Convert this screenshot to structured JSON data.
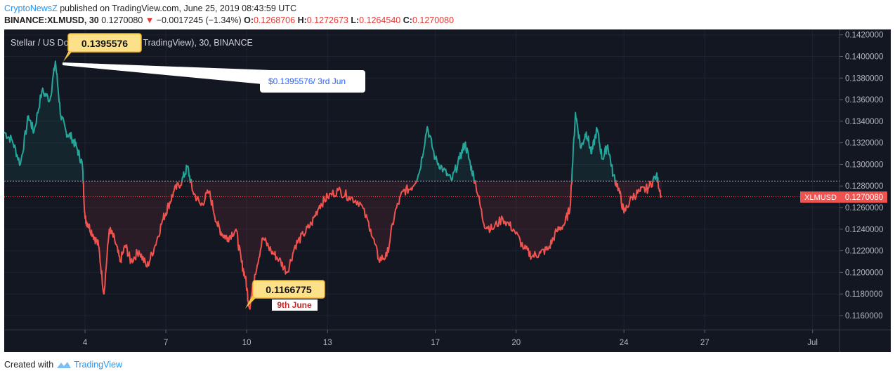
{
  "header": {
    "brand": "CryptoNewsZ",
    "published_text": " published on TradingView.com, June 25, 2019 08:43:59 UTC",
    "symbol": "BINANCE:XLMUSD, 30",
    "last": "0.1270080",
    "change_arrow": "▼",
    "change": "−0.0017245 (−1.34%)",
    "o_key": "O:",
    "o_val": "0.1268706",
    "h_key": "H:",
    "h_val": "0.1272673",
    "l_key": "L:",
    "l_val": "0.1264540",
    "c_key": "C:",
    "c_val": "0.1270080"
  },
  "chart_data": {
    "type": "line",
    "title": "Stellar / US Do",
    "title_suffix": "y TradingView), 30, BINANCE",
    "ylim": [
      0.1147,
      0.1425
    ],
    "y_ticks": [
      "0.1160000",
      "0.1180000",
      "0.1200000",
      "0.1220000",
      "0.1240000",
      "0.1260000",
      "0.1280000",
      "0.1300000",
      "0.1320000",
      "0.1340000",
      "0.1360000",
      "0.1380000",
      "0.1400000",
      "0.1420000"
    ],
    "x_ticks": [
      "4",
      "7",
      "10",
      "13",
      "17",
      "20",
      "24",
      "27",
      "Jul"
    ],
    "x_tick_days": [
      4,
      7,
      10,
      13,
      17,
      20,
      24,
      27,
      31
    ],
    "xlim": [
      1,
      32
    ],
    "baseline": 0.12845,
    "last_value": 0.127008,
    "last_value_label": "0.1270080",
    "last_value_tag": "XLMUSD",
    "up_color": "#26a69a",
    "down_color": "#ef5350",
    "x": [
      1.0,
      1.3,
      1.6,
      1.9,
      2.1,
      2.4,
      2.7,
      2.9,
      3.1,
      3.3,
      3.5,
      3.7,
      3.9,
      4.0,
      4.1,
      4.3,
      4.5,
      4.7,
      4.9,
      5.1,
      5.3,
      5.5,
      5.7,
      6.0,
      6.3,
      6.6,
      6.9,
      7.1,
      7.3,
      7.6,
      7.8,
      8.0,
      8.3,
      8.6,
      8.9,
      9.1,
      9.3,
      9.6,
      9.8,
      9.95,
      10.1,
      10.3,
      10.6,
      10.9,
      11.2,
      11.5,
      11.8,
      12.1,
      12.4,
      12.7,
      13.0,
      13.4,
      13.8,
      14.2,
      14.6,
      14.9,
      15.2,
      15.5,
      15.8,
      16.1,
      16.4,
      16.7,
      17.0,
      17.3,
      17.6,
      17.9,
      18.1,
      18.3,
      18.5,
      18.8,
      19.1,
      19.5,
      19.9,
      20.3,
      20.6,
      20.9,
      21.2,
      21.5,
      21.8,
      22.0,
      22.2,
      22.4,
      22.6,
      22.8,
      23.0,
      23.2,
      23.4,
      23.6,
      23.8,
      24.0,
      24.3,
      24.6,
      24.9,
      25.2,
      25.4
    ],
    "values": [
      0.133,
      0.1322,
      0.13,
      0.1345,
      0.133,
      0.1368,
      0.136,
      0.1395576,
      0.1345,
      0.133,
      0.1325,
      0.1315,
      0.13,
      0.125,
      0.1245,
      0.1235,
      0.1225,
      0.118,
      0.124,
      0.123,
      0.121,
      0.1225,
      0.121,
      0.122,
      0.1205,
      0.1225,
      0.125,
      0.1262,
      0.1275,
      0.1285,
      0.1298,
      0.1275,
      0.1262,
      0.1275,
      0.1245,
      0.1235,
      0.1232,
      0.124,
      0.121,
      0.1195,
      0.1166775,
      0.1198,
      0.1232,
      0.122,
      0.1212,
      0.12,
      0.1225,
      0.1235,
      0.1245,
      0.1262,
      0.127,
      0.1276,
      0.127,
      0.1265,
      0.124,
      0.1212,
      0.1215,
      0.1255,
      0.1275,
      0.1278,
      0.1292,
      0.1335,
      0.1305,
      0.1295,
      0.1285,
      0.1305,
      0.132,
      0.13,
      0.1282,
      0.1245,
      0.124,
      0.125,
      0.124,
      0.1222,
      0.1215,
      0.1218,
      0.1222,
      0.1238,
      0.1245,
      0.126,
      0.1348,
      0.1315,
      0.133,
      0.131,
      0.1333,
      0.1305,
      0.1318,
      0.129,
      0.1278,
      0.1255,
      0.127,
      0.1275,
      0.1278,
      0.129,
      0.127
    ],
    "annotations": [
      {
        "label": "0.1395576",
        "callout": "$0.1395576/ 3rd Jun"
      },
      {
        "label": "0.1166775",
        "note": "9th June"
      }
    ]
  },
  "footer": {
    "created_with": "Created with",
    "tv": "TradingView"
  }
}
